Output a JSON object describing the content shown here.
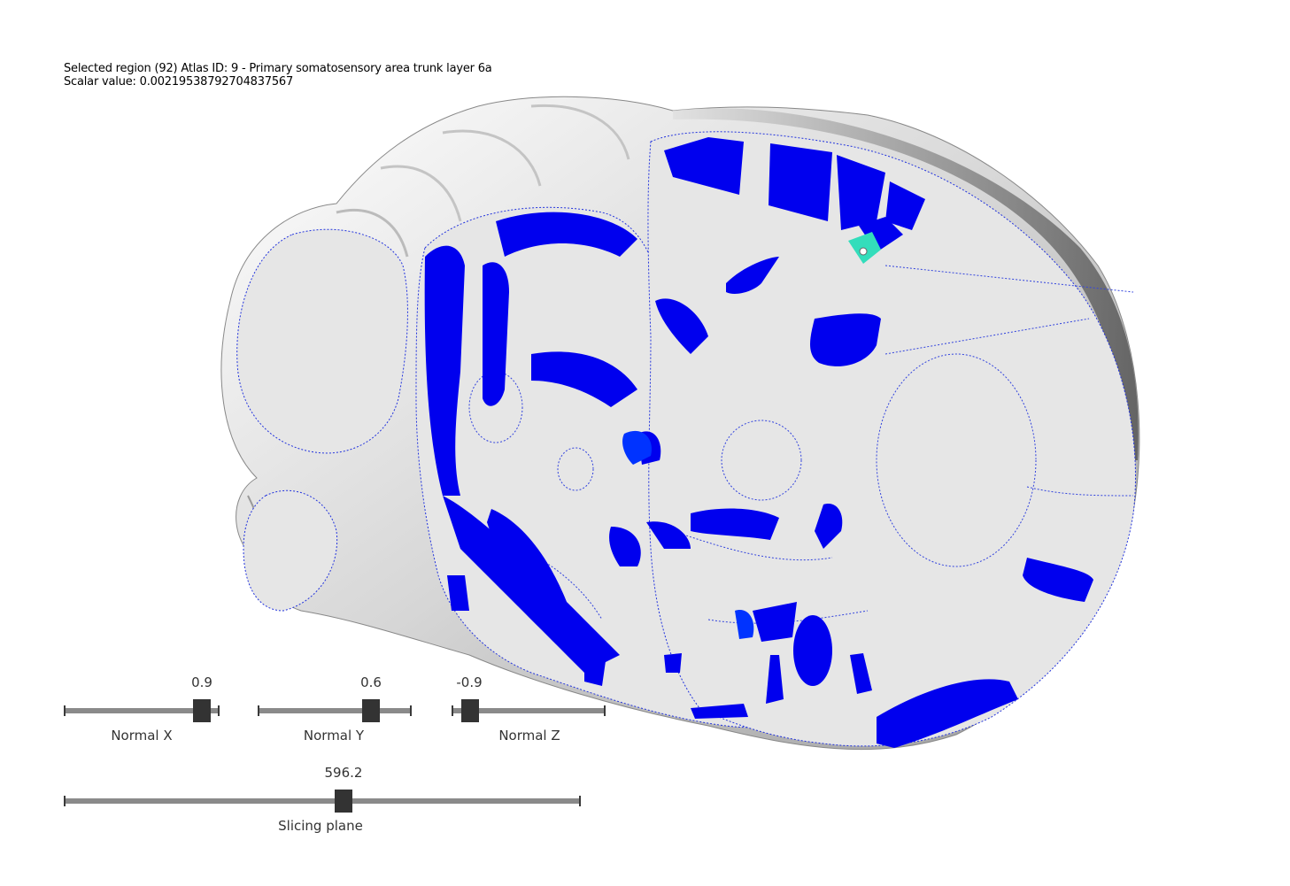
{
  "info": {
    "line1": "Selected region (92) Atlas ID: 9 - Primary somatosensory area trunk layer 6a",
    "line2": "Scalar value: 0.00219538792704837567"
  },
  "colors": {
    "slice_gray": "#e6e6e6",
    "region_blue": "#0000ee",
    "region_blue_light": "#0033ff",
    "highlight": "#33ddbb",
    "surface": "#d9d9d9",
    "slider_track": "#8a8a8a",
    "slider_knob": "#333333"
  },
  "sliders": {
    "normal_x": {
      "label": "Normal X",
      "value": "0.9"
    },
    "normal_y": {
      "label": "Normal Y",
      "value": "0.6"
    },
    "normal_z": {
      "label": "Normal Z",
      "value": "-0.9"
    },
    "slicing_plane": {
      "label": "Slicing plane",
      "value": "596.2"
    }
  }
}
